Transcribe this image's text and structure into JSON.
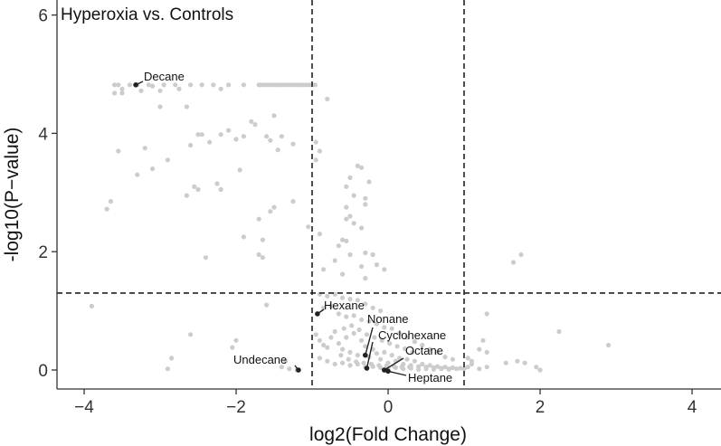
{
  "chart_data": {
    "type": "scatter",
    "title": "Hyperoxia vs. Controls",
    "xlabel": "log2(Fold Change)",
    "ylabel": "-log10(P−value)",
    "xlim": [
      -4.4,
      4.4
    ],
    "ylim": [
      -0.3,
      6.2
    ],
    "xticks": [
      -4,
      -2,
      0,
      2,
      4
    ],
    "yticks": [
      0,
      2,
      4,
      6
    ],
    "grid": false,
    "legend": "none",
    "thresholds": {
      "vlines": [
        -1,
        1
      ],
      "hline": 1.3
    },
    "colors": {
      "point": "#cccccc",
      "highlight": "#222222",
      "line": "#222222",
      "axis": "#333333"
    },
    "points": [
      [
        -3.6,
        4.82
      ],
      [
        -3.55,
        4.82
      ],
      [
        -3.5,
        4.75
      ],
      [
        -3.4,
        4.82
      ],
      [
        -3.3,
        4.82
      ],
      [
        -3.25,
        4.72
      ],
      [
        -3.15,
        4.82
      ],
      [
        -3.1,
        4.8
      ],
      [
        -3.0,
        4.72
      ],
      [
        -2.95,
        4.82
      ],
      [
        -2.8,
        4.82
      ],
      [
        -2.75,
        4.75
      ],
      [
        -2.6,
        4.82
      ],
      [
        -2.45,
        4.82
      ],
      [
        -2.3,
        4.82
      ],
      [
        -2.2,
        4.75
      ],
      [
        -2.1,
        4.82
      ],
      [
        -1.9,
        4.82
      ],
      [
        -1.7,
        4.82
      ],
      [
        -1.68,
        4.82
      ],
      [
        -1.64,
        4.82
      ],
      [
        -1.6,
        4.82
      ],
      [
        -1.56,
        4.82
      ],
      [
        -1.52,
        4.82
      ],
      [
        -1.48,
        4.82
      ],
      [
        -1.44,
        4.82
      ],
      [
        -1.4,
        4.82
      ],
      [
        -1.36,
        4.82
      ],
      [
        -1.32,
        4.82
      ],
      [
        -1.28,
        4.82
      ],
      [
        -1.24,
        4.82
      ],
      [
        -1.2,
        4.82
      ],
      [
        -1.16,
        4.82
      ],
      [
        -1.12,
        4.82
      ],
      [
        -1.08,
        4.82
      ],
      [
        -1.04,
        4.82
      ],
      [
        -1.0,
        4.82
      ],
      [
        -0.96,
        4.82
      ],
      [
        -3.6,
        4.68
      ],
      [
        -3.5,
        4.68
      ],
      [
        -0.8,
        4.58
      ],
      [
        -3.0,
        4.45
      ],
      [
        -2.65,
        4.45
      ],
      [
        -1.5,
        4.3
      ],
      [
        -1.8,
        4.2
      ],
      [
        -1.75,
        4.15
      ],
      [
        -2.1,
        4.05
      ],
      [
        -2.5,
        3.98
      ],
      [
        -2.45,
        3.98
      ],
      [
        -2.2,
        3.98
      ],
      [
        -1.9,
        3.95
      ],
      [
        -1.6,
        3.95
      ],
      [
        -1.4,
        3.95
      ],
      [
        -2.0,
        3.9
      ],
      [
        -1.55,
        3.88
      ],
      [
        -2.35,
        3.85
      ],
      [
        -0.95,
        3.85
      ],
      [
        -1.25,
        3.82
      ],
      [
        -2.6,
        3.8
      ],
      [
        -3.2,
        3.75
      ],
      [
        -1.45,
        3.72
      ],
      [
        -3.55,
        3.7
      ],
      [
        -0.9,
        3.7
      ],
      [
        -2.9,
        3.55
      ],
      [
        -0.95,
        3.55
      ],
      [
        -3.1,
        3.4
      ],
      [
        -1.95,
        3.38
      ],
      [
        -3.3,
        3.3
      ],
      [
        -0.4,
        3.45
      ],
      [
        -0.35,
        3.42
      ],
      [
        -0.5,
        3.25
      ],
      [
        -0.55,
        3.1
      ],
      [
        -0.25,
        3.18
      ],
      [
        -2.25,
        3.15
      ],
      [
        -2.55,
        3.1
      ],
      [
        -2.5,
        3.05
      ],
      [
        -2.2,
        3.05
      ],
      [
        -2.65,
        2.95
      ],
      [
        -0.45,
        2.95
      ],
      [
        -1.25,
        2.85
      ],
      [
        -0.3,
        2.8
      ],
      [
        -0.3,
        2.9
      ],
      [
        -1.5,
        2.75
      ],
      [
        -1.55,
        2.68
      ],
      [
        -3.65,
        2.85
      ],
      [
        -3.7,
        2.72
      ],
      [
        -0.55,
        2.75
      ],
      [
        -0.5,
        2.6
      ],
      [
        -0.55,
        2.55
      ],
      [
        -0.45,
        2.48
      ],
      [
        -0.35,
        2.4
      ],
      [
        -0.9,
        2.3
      ],
      [
        -1.05,
        2.42
      ],
      [
        -1.7,
        2.55
      ],
      [
        -1.9,
        2.25
      ],
      [
        -0.6,
        2.2
      ],
      [
        -0.55,
        2.18
      ],
      [
        -1.65,
        2.2
      ],
      [
        -0.65,
        2.1
      ],
      [
        -1.65,
        1.9
      ],
      [
        -1.7,
        1.95
      ],
      [
        -2.4,
        1.9
      ],
      [
        -0.5,
        1.95
      ],
      [
        -0.3,
        1.98
      ],
      [
        -0.7,
        1.85
      ],
      [
        -0.2,
        1.95
      ],
      [
        -0.15,
        1.78
      ],
      [
        -0.35,
        1.75
      ],
      [
        -0.85,
        1.7
      ],
      [
        -0.6,
        1.62
      ],
      [
        -0.3,
        1.55
      ],
      [
        -0.05,
        1.7
      ],
      [
        1.65,
        1.82
      ],
      [
        1.75,
        1.95
      ],
      [
        -0.9,
        1.28
      ],
      [
        -0.8,
        1.25
      ],
      [
        -0.7,
        1.28
      ],
      [
        -0.6,
        1.22
      ],
      [
        -0.5,
        1.2
      ],
      [
        -0.4,
        1.18
      ],
      [
        -0.3,
        1.12
      ],
      [
        -0.2,
        1.05
      ],
      [
        -0.1,
        1.0
      ],
      [
        -0.85,
        1.05
      ],
      [
        -0.75,
        1.08
      ],
      [
        -0.65,
        0.95
      ],
      [
        -0.55,
        0.9
      ],
      [
        -0.45,
        0.92
      ],
      [
        -0.35,
        0.85
      ],
      [
        -0.25,
        0.82
      ],
      [
        -0.15,
        0.78
      ],
      [
        -0.05,
        0.72
      ],
      [
        0.05,
        0.7
      ],
      [
        0.15,
        0.62
      ],
      [
        0.25,
        0.55
      ],
      [
        0.35,
        0.48
      ],
      [
        0.45,
        0.42
      ],
      [
        0.55,
        0.35
      ],
      [
        0.65,
        0.3
      ],
      [
        0.75,
        0.22
      ],
      [
        0.85,
        0.18
      ],
      [
        -0.95,
        0.6
      ],
      [
        -0.9,
        0.5
      ],
      [
        -0.85,
        0.42
      ],
      [
        -0.8,
        0.38
      ],
      [
        -0.75,
        0.55
      ],
      [
        -0.7,
        0.65
      ],
      [
        -0.65,
        0.45
      ],
      [
        -0.6,
        0.35
      ],
      [
        -0.55,
        0.55
      ],
      [
        -0.5,
        0.3
      ],
      [
        -0.45,
        0.62
      ],
      [
        -0.4,
        0.25
      ],
      [
        -0.35,
        0.5
      ],
      [
        -0.3,
        0.4
      ],
      [
        -0.25,
        0.22
      ],
      [
        -0.2,
        0.35
      ],
      [
        -0.15,
        0.28
      ],
      [
        -0.1,
        0.18
      ],
      [
        -0.05,
        0.3
      ],
      [
        0.0,
        0.12
      ],
      [
        0.05,
        0.25
      ],
      [
        0.1,
        0.15
      ],
      [
        0.15,
        0.2
      ],
      [
        0.2,
        0.1
      ],
      [
        0.25,
        0.18
      ],
      [
        0.3,
        0.08
      ],
      [
        0.35,
        0.15
      ],
      [
        0.4,
        0.06
      ],
      [
        0.45,
        0.1
      ],
      [
        0.5,
        0.05
      ],
      [
        0.55,
        0.08
      ],
      [
        0.6,
        0.04
      ],
      [
        0.65,
        0.06
      ],
      [
        0.7,
        0.03
      ],
      [
        0.75,
        0.05
      ],
      [
        0.8,
        0.02
      ],
      [
        0.85,
        0.04
      ],
      [
        0.9,
        0.02
      ],
      [
        0.95,
        0.03
      ],
      [
        -0.9,
        0.2
      ],
      [
        -0.8,
        0.15
      ],
      [
        -0.7,
        0.1
      ],
      [
        -0.6,
        0.12
      ],
      [
        -0.5,
        0.08
      ],
      [
        -0.4,
        0.1
      ],
      [
        -0.3,
        0.05
      ],
      [
        -0.2,
        0.06
      ],
      [
        -0.1,
        0.04
      ],
      [
        0.0,
        0.03
      ],
      [
        0.1,
        0.04
      ],
      [
        0.2,
        0.02
      ],
      [
        0.3,
        0.03
      ],
      [
        0.4,
        0.01
      ],
      [
        0.5,
        0.02
      ],
      [
        0.6,
        0.01
      ],
      [
        0.7,
        0.02
      ],
      [
        0.8,
        0.01
      ],
      [
        -0.58,
        0.7
      ],
      [
        -0.48,
        0.75
      ],
      [
        -0.38,
        0.68
      ],
      [
        -0.28,
        0.6
      ],
      [
        -0.18,
        0.55
      ],
      [
        -0.08,
        0.5
      ],
      [
        0.02,
        0.45
      ],
      [
        0.12,
        0.4
      ],
      [
        0.22,
        0.36
      ],
      [
        0.32,
        0.3
      ],
      [
        -0.62,
        0.25
      ],
      [
        -0.52,
        0.18
      ],
      [
        -0.42,
        0.14
      ],
      [
        -0.32,
        0.12
      ],
      [
        -0.22,
        0.1
      ],
      [
        -0.12,
        0.08
      ],
      [
        -0.02,
        0.07
      ],
      [
        0.08,
        0.06
      ],
      [
        0.18,
        0.05
      ],
      [
        0.28,
        0.05
      ],
      [
        -3.9,
        1.08
      ],
      [
        -2.0,
        0.5
      ],
      [
        -2.05,
        0.38
      ],
      [
        -2.6,
        0.6
      ],
      [
        -2.85,
        0.2
      ],
      [
        -2.9,
        0.02
      ],
      [
        -1.6,
        1.1
      ],
      [
        -1.2,
        0.0
      ],
      [
        -1.35,
        0.15
      ],
      [
        -1.3,
        0.02
      ],
      [
        -1.4,
        0.05
      ],
      [
        1.3,
        0.95
      ],
      [
        1.25,
        0.5
      ],
      [
        1.2,
        0.35
      ],
      [
        1.3,
        0.3
      ],
      [
        1.1,
        0.1
      ],
      [
        1.05,
        0.05
      ],
      [
        1.2,
        0.02
      ],
      [
        1.3,
        0.05
      ],
      [
        1.55,
        0.12
      ],
      [
        1.7,
        0.15
      ],
      [
        1.8,
        0.12
      ],
      [
        1.95,
        0.05
      ],
      [
        2.0,
        0.0
      ],
      [
        2.25,
        0.65
      ],
      [
        2.9,
        0.42
      ],
      [
        1.05,
        0.2
      ],
      [
        1.1,
        0.15
      ],
      [
        1.0,
        0.02
      ]
    ],
    "annotations": [
      {
        "name": "Decane",
        "x": -3.32,
        "y": 4.82,
        "label": "Decane"
      },
      {
        "name": "Hexane",
        "x": -0.93,
        "y": 0.95,
        "label": "Hexane"
      },
      {
        "name": "Nonane",
        "x": -0.3,
        "y": 0.25,
        "label": "Nonane"
      },
      {
        "name": "Cyclohexane",
        "x": -0.28,
        "y": 0.03,
        "label": "Cyclohexane"
      },
      {
        "name": "Octane",
        "x": -0.05,
        "y": 0.0,
        "label": "Octane"
      },
      {
        "name": "Heptane",
        "x": 0.0,
        "y": -0.02,
        "label": "Heptane"
      },
      {
        "name": "Undecane",
        "x": -1.18,
        "y": 0.0,
        "label": "Undecane"
      }
    ]
  }
}
